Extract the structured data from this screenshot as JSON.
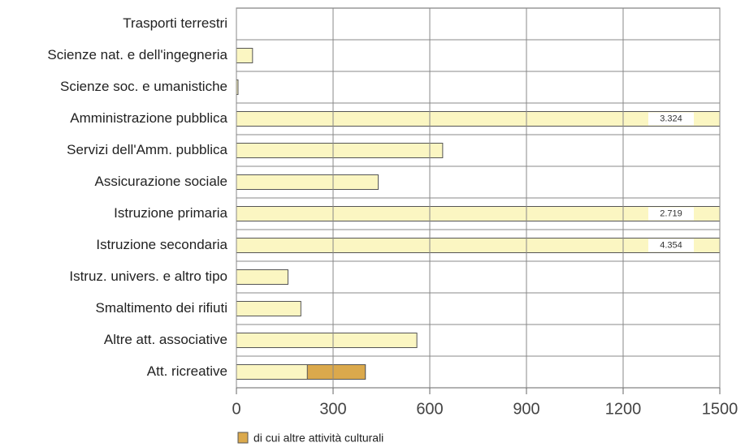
{
  "chart_data": {
    "type": "bar",
    "orientation": "horizontal",
    "categories": [
      "Trasporti terrestri",
      "Scienze nat. e dell'ingegneria",
      "Scienze soc. e umanistiche",
      "Amministrazione pubblica",
      "Servizi dell'Amm. pubblica",
      "Assicurazione sociale",
      "Istruzione primaria",
      "Istruzione secondaria",
      "Istruz. univers. e altro tipo",
      "Smaltimento dei rifiuti",
      "Altre att. associative",
      "Att. ricreative"
    ],
    "series": [
      {
        "color": "#fbf6c2",
        "values": [
          0,
          50,
          5,
          3324,
          640,
          440,
          2719,
          4354,
          160,
          200,
          560,
          400
        ],
        "value_labels": [
          null,
          null,
          null,
          "3.324",
          null,
          null,
          "2.719",
          "4.354",
          null,
          null,
          null,
          null
        ]
      },
      {
        "name": "di cui altre attività culturali",
        "color": "#dba94c",
        "values": [
          null,
          null,
          null,
          null,
          null,
          null,
          null,
          null,
          null,
          null,
          null,
          180
        ]
      }
    ],
    "xlim": [
      0,
      1500
    ],
    "xticks": [
      0,
      300,
      600,
      900,
      1200,
      1500
    ],
    "grid": true
  }
}
